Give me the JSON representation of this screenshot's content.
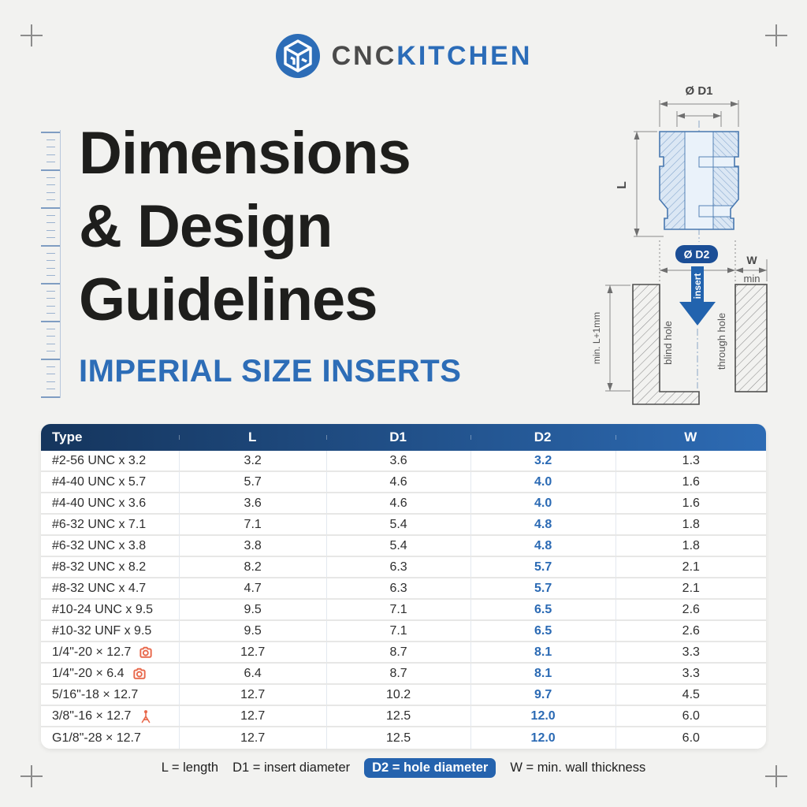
{
  "brand": {
    "name_primary": "CNC",
    "name_secondary": "KITCHEN"
  },
  "header": {
    "title_line1": "Dimensions",
    "title_line2": "& Design",
    "title_line3": "Guidelines",
    "subtitle": "IMPERIAL SIZE INSERTS"
  },
  "diagram": {
    "labels": {
      "d1": "Ø D1",
      "l": "L",
      "d2": "Ø D2",
      "w": "W",
      "min": "min",
      "insert": "insert",
      "blind_hole": "blind hole",
      "through_hole": "through hole",
      "min_depth": "min. L+1mm"
    },
    "colors": {
      "insert_fill": "#dbe7f4",
      "insert_stroke": "#4878b0",
      "badge_blue": "#1b4e96",
      "arrow_blue": "#2263ae",
      "dimension_gray": "#6f6f6f"
    }
  },
  "table": {
    "headers": [
      "Type",
      "L",
      "D1",
      "D2",
      "W"
    ],
    "rows": [
      {
        "type": "#2-56 UNC x 3.2",
        "l": "3.2",
        "d1": "3.6",
        "d2": "3.2",
        "w": "1.3",
        "icon": null
      },
      {
        "type": "#4-40 UNC x 5.7",
        "l": "5.7",
        "d1": "4.6",
        "d2": "4.0",
        "w": "1.6",
        "icon": null
      },
      {
        "type": "#4-40 UNC x 3.6",
        "l": "3.6",
        "d1": "4.6",
        "d2": "4.0",
        "w": "1.6",
        "icon": null
      },
      {
        "type": "#6-32 UNC x 7.1",
        "l": "7.1",
        "d1": "5.4",
        "d2": "4.8",
        "w": "1.8",
        "icon": null
      },
      {
        "type": "#6-32 UNC x 3.8",
        "l": "3.8",
        "d1": "5.4",
        "d2": "4.8",
        "w": "1.8",
        "icon": null
      },
      {
        "type": "#8-32 UNC x 8.2",
        "l": "8.2",
        "d1": "6.3",
        "d2": "5.7",
        "w": "2.1",
        "icon": null
      },
      {
        "type": "#8-32 UNC x 4.7",
        "l": "4.7",
        "d1": "6.3",
        "d2": "5.7",
        "w": "2.1",
        "icon": null
      },
      {
        "type": "#10-24 UNC x 9.5",
        "l": "9.5",
        "d1": "7.1",
        "d2": "6.5",
        "w": "2.6",
        "icon": null
      },
      {
        "type": "#10-32 UNF x 9.5",
        "l": "9.5",
        "d1": "7.1",
        "d2": "6.5",
        "w": "2.6",
        "icon": null
      },
      {
        "type": "1/4\"-20 × 12.7",
        "l": "12.7",
        "d1": "8.7",
        "d2": "8.1",
        "w": "3.3",
        "icon": "camera"
      },
      {
        "type": "1/4\"-20 × 6.4",
        "l": "6.4",
        "d1": "8.7",
        "d2": "8.1",
        "w": "3.3",
        "icon": "camera"
      },
      {
        "type": "5/16\"-18 × 12.7",
        "l": "12.7",
        "d1": "10.2",
        "d2": "9.7",
        "w": "4.5",
        "icon": null
      },
      {
        "type": "3/8\"-16 × 12.7",
        "l": "12.7",
        "d1": "12.5",
        "d2": "12.0",
        "w": "6.0",
        "icon": "tripod"
      },
      {
        "type": "G1/8\"-28 × 12.7",
        "l": "12.7",
        "d1": "12.5",
        "d2": "12.0",
        "w": "6.0",
        "icon": null
      }
    ],
    "icon_color": "#e8684b"
  },
  "legend": {
    "items": [
      {
        "text": "L = length",
        "highlight": false
      },
      {
        "text": "D1 = insert diameter",
        "highlight": false
      },
      {
        "text": "D2 = hole diameter",
        "highlight": true
      },
      {
        "text": "W = min. wall thickness",
        "highlight": false
      }
    ]
  }
}
